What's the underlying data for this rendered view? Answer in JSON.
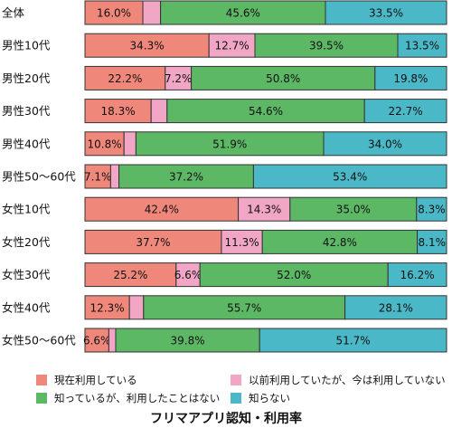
{
  "chart_data": {
    "type": "bar",
    "orientation": "horizontal",
    "stacked": "percent",
    "title": "フリマアプリ認知・利用率",
    "categories": [
      "全体",
      "男性10代",
      "男性20代",
      "男性30代",
      "男性40代",
      "男性50〜60代",
      "女性10代",
      "女性20代",
      "女性30代",
      "女性40代",
      "女性50〜60代"
    ],
    "series": [
      {
        "name": "現在利用している",
        "color": "#f0877b",
        "values": [
          16.0,
          34.3,
          22.2,
          18.3,
          10.8,
          7.1,
          42.4,
          37.7,
          25.2,
          12.3,
          6.6
        ],
        "labels": [
          "16.0%",
          "34.3%",
          "22.2%",
          "18.3%",
          "10.8%",
          "7.1%",
          "42.4%",
          "37.7%",
          "25.2%",
          "12.3%",
          "6.6%"
        ]
      },
      {
        "name": "以前利用していたが、今は利用していない",
        "color": "#f2a6c6",
        "values": [
          4.9,
          12.7,
          7.2,
          4.4,
          3.3,
          2.3,
          14.3,
          11.3,
          6.6,
          3.9,
          1.9
        ],
        "labels": [
          "",
          "12.7%",
          "7.2%",
          "",
          "",
          "",
          "14.3%",
          "11.3%",
          "6.6%",
          "",
          ""
        ]
      },
      {
        "name": "知っているが、利用したことはない",
        "color": "#5db866",
        "values": [
          45.6,
          39.5,
          50.8,
          54.6,
          51.9,
          37.2,
          35.0,
          42.8,
          52.0,
          55.7,
          39.8
        ],
        "labels": [
          "45.6%",
          "39.5%",
          "50.8%",
          "54.6%",
          "51.9%",
          "37.2%",
          "35.0%",
          "42.8%",
          "52.0%",
          "55.7%",
          "39.8%"
        ]
      },
      {
        "name": "知らない",
        "color": "#4bb8c8",
        "values": [
          33.5,
          13.5,
          19.8,
          22.7,
          34.0,
          53.4,
          8.3,
          8.1,
          16.2,
          28.1,
          51.7
        ],
        "labels": [
          "33.5%",
          "13.5%",
          "19.8%",
          "22.7%",
          "34.0%",
          "53.4%",
          "8.3%",
          "8.1%",
          "16.2%",
          "28.1%",
          "51.7%"
        ]
      }
    ],
    "legend_position": "bottom",
    "grid": false
  }
}
